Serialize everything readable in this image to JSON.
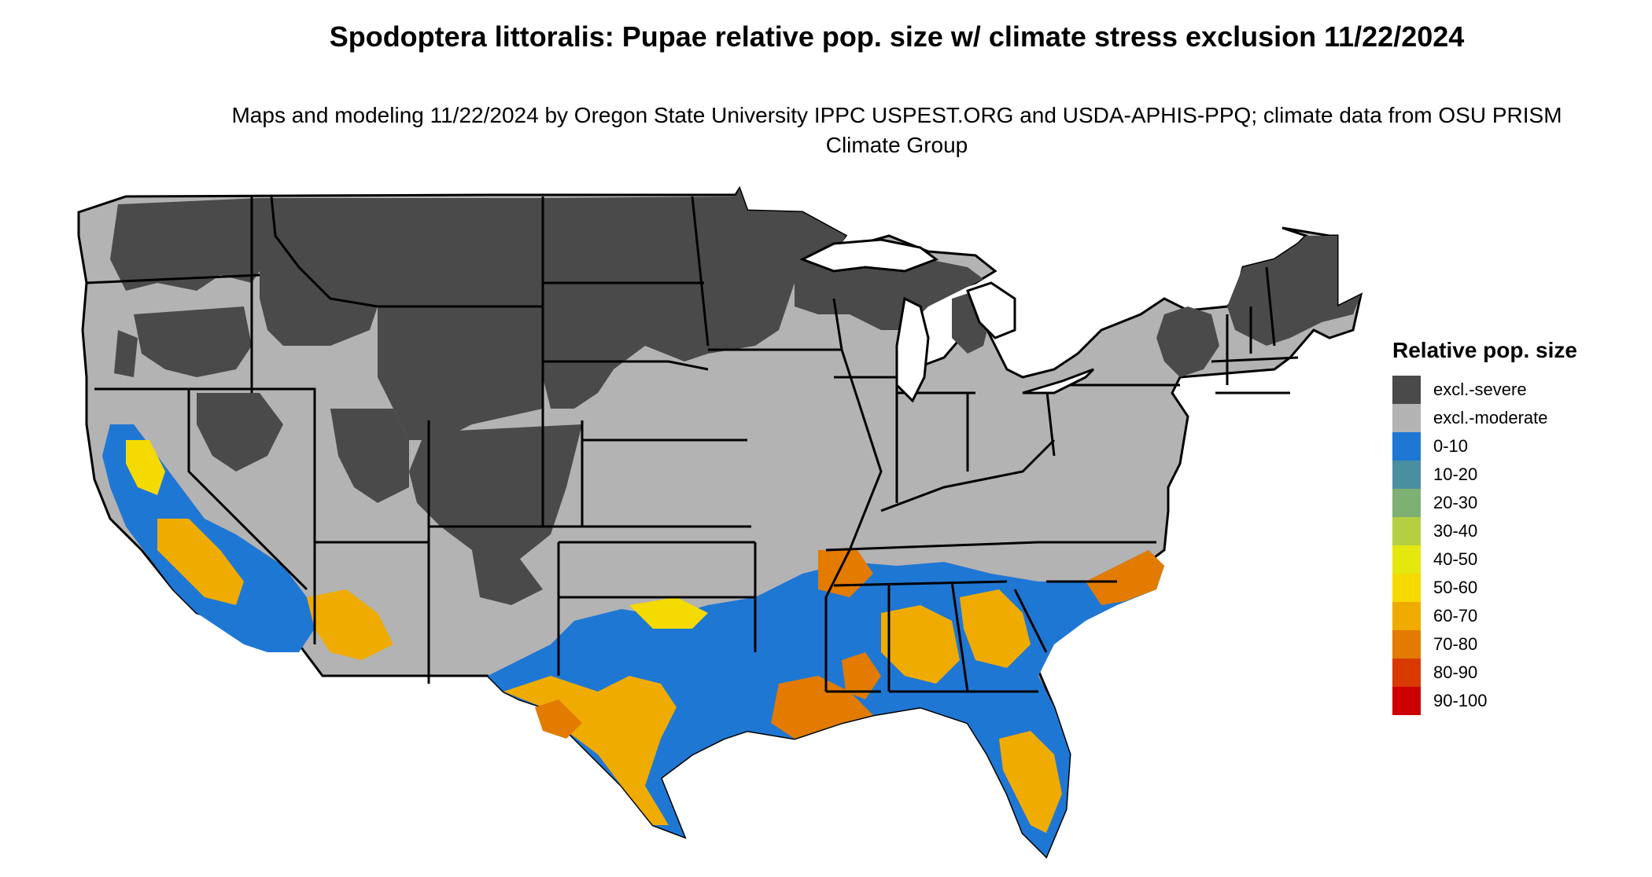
{
  "title": "Spodoptera littoralis: Pupae relative pop. size w/ climate stress exclusion 11/22/2024",
  "subtitle": "Maps and modeling 11/22/2024 by Oregon State University IPPC USPEST.ORG and USDA-APHIS-PPQ; climate data from OSU PRISM Climate Group",
  "legend": {
    "title": "Relative pop. size",
    "items": [
      {
        "label": "excl.-severe",
        "color": "#4a4a4a"
      },
      {
        "label": "excl.-moderate",
        "color": "#b3b3b3"
      },
      {
        "label": "0-10",
        "color": "#1f77d4"
      },
      {
        "label": "10-20",
        "color": "#4a8fa0"
      },
      {
        "label": "20-30",
        "color": "#7fb073"
      },
      {
        "label": "30-40",
        "color": "#b5cf43"
      },
      {
        "label": "40-50",
        "color": "#e4e80f"
      },
      {
        "label": "50-60",
        "color": "#f5da00"
      },
      {
        "label": "60-70",
        "color": "#f0ab00"
      },
      {
        "label": "70-80",
        "color": "#e27b00"
      },
      {
        "label": "80-90",
        "color": "#d83a00"
      },
      {
        "label": "90-100",
        "color": "#cc0000"
      }
    ]
  }
}
